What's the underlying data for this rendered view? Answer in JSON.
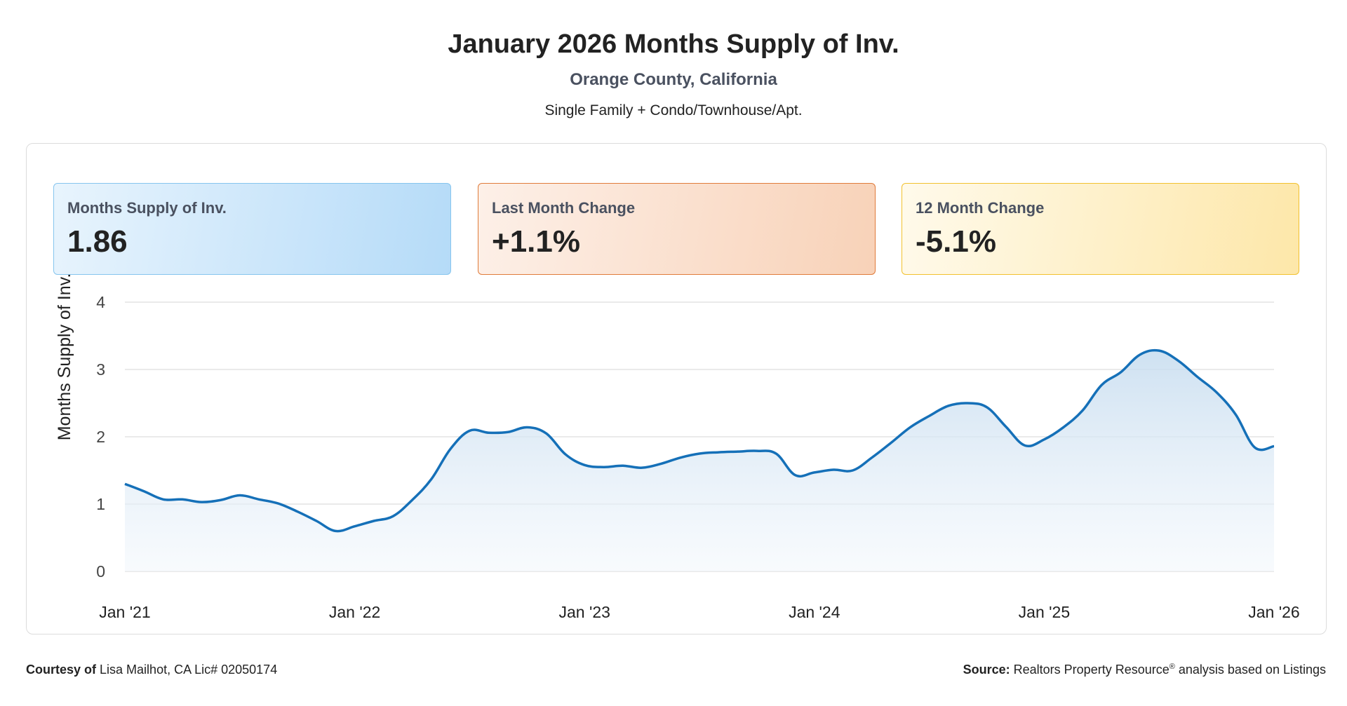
{
  "header": {
    "title": "January 2026 Months Supply of Inv.",
    "subtitle": "Orange County, California",
    "property_types": "Single Family + Condo/Townhouse/Apt."
  },
  "stats": [
    {
      "label": "Months Supply of Inv.",
      "value": "1.86"
    },
    {
      "label": "Last Month Change",
      "value": "+1.1%"
    },
    {
      "label": "12 Month Change",
      "value": "-5.1%"
    }
  ],
  "footer": {
    "courtesy_label": "Courtesy of",
    "courtesy_text": "Lisa Mailhot, CA Lic# 02050174",
    "source_label": "Source:",
    "source_brand": "Realtors Property Resource",
    "source_mark": "®",
    "source_text": "analysis based on Listings"
  },
  "colors": {
    "line": "#1570b8",
    "area_top": "#c6dcef",
    "grid": "#e3e3e3"
  },
  "chart_data": {
    "type": "area",
    "title": "",
    "xlabel": "",
    "ylabel": "Months Supply of Inv.",
    "ylim": [
      0,
      4
    ],
    "yticks": [
      0,
      1,
      2,
      3,
      4
    ],
    "x_ticks": [
      "Jan '21",
      "Jan '22",
      "Jan '23",
      "Jan '24",
      "Jan '25",
      "Jan '26"
    ],
    "grid": true,
    "legend": "none",
    "series": [
      {
        "x": [
          "2021-01",
          "2021-02",
          "2021-03",
          "2021-04",
          "2021-05",
          "2021-06",
          "2021-07",
          "2021-08",
          "2021-09",
          "2021-10",
          "2021-11",
          "2021-12",
          "2022-01",
          "2022-02",
          "2022-03",
          "2022-04",
          "2022-05",
          "2022-06",
          "2022-07",
          "2022-08",
          "2022-09",
          "2022-10",
          "2022-11",
          "2022-12",
          "2023-01",
          "2023-02",
          "2023-03",
          "2023-04",
          "2023-05",
          "2023-06",
          "2023-07",
          "2023-08",
          "2023-09",
          "2023-10",
          "2023-11",
          "2023-12",
          "2024-01",
          "2024-02",
          "2024-03",
          "2024-04",
          "2024-05",
          "2024-06",
          "2024-07",
          "2024-08",
          "2024-09",
          "2024-10",
          "2024-11",
          "2024-12",
          "2025-01",
          "2025-02",
          "2025-03",
          "2025-04",
          "2025-05",
          "2025-06",
          "2025-07",
          "2025-08",
          "2025-09",
          "2025-10",
          "2025-11",
          "2025-12",
          "2026-01"
        ],
        "values": [
          1.3,
          1.19,
          1.07,
          1.07,
          1.03,
          1.06,
          1.13,
          1.07,
          1.01,
          0.89,
          0.75,
          0.6,
          0.67,
          0.75,
          0.82,
          1.06,
          1.37,
          1.82,
          2.09,
          2.06,
          2.07,
          2.14,
          2.05,
          1.74,
          1.58,
          1.55,
          1.57,
          1.54,
          1.6,
          1.69,
          1.75,
          1.77,
          1.78,
          1.79,
          1.75,
          1.43,
          1.47,
          1.51,
          1.5,
          1.69,
          1.91,
          2.14,
          2.31,
          2.46,
          2.5,
          2.44,
          2.15,
          1.87,
          1.96,
          2.14,
          2.39,
          2.77,
          2.96,
          3.22,
          3.28,
          3.13,
          2.89,
          2.66,
          2.33,
          1.84,
          1.86
        ]
      }
    ]
  }
}
